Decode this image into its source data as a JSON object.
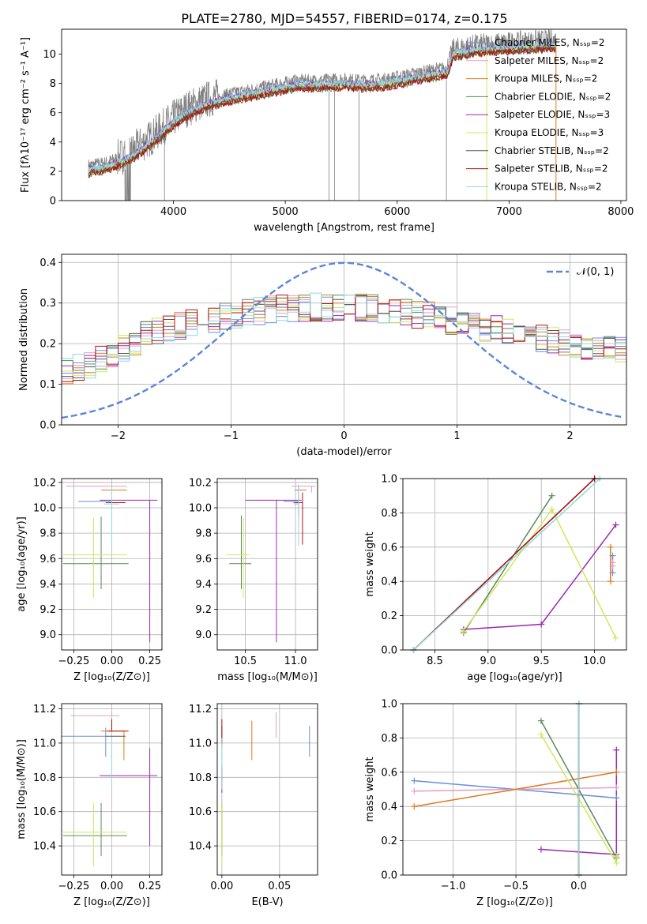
{
  "title": "PLATE=2780, MJD=54557, FIBERID=0174, z=0.175",
  "colors": {
    "chabrier_miles": "#6a8fd8",
    "salpeter_miles": "#e0a0c8",
    "kroupa_miles": "#e07a1f",
    "chabrier_elodie": "#5a8a5a",
    "salpeter_elodie": "#9a2ab0",
    "kroupa_elodie": "#cfe85a",
    "chabrier_stelib": "#555555",
    "salpeter_stelib": "#b01010",
    "kroupa_stelib": "#8ed8e0",
    "data": "#808080",
    "gauss": "#5a86d6",
    "grid": "#b0b0b0"
  },
  "chart_data": [
    {
      "id": "spectrum",
      "type": "line",
      "xlabel": "wavelength [Angstrom, rest frame]",
      "ylabel": "Flux [fλ10⁻¹⁷ erg cm⁻² s⁻¹ A⁻¹]",
      "xlim": [
        3000,
        8050
      ],
      "ylim": [
        0,
        11.7
      ],
      "xticks": [
        4000,
        5000,
        6000,
        7000,
        8000
      ],
      "yticks": [
        0,
        2,
        4,
        6,
        8,
        10
      ],
      "grid": false,
      "legend_position": "upper right",
      "series": [
        {
          "name": "Chabrier MILES, Nₛₛₚ=2",
          "key": "chabrier_miles"
        },
        {
          "name": "Salpeter MILES, Nₛₛₚ=2",
          "key": "salpeter_miles"
        },
        {
          "name": "Kroupa MILES, Nₛₛₚ=2",
          "key": "kroupa_miles"
        },
        {
          "name": "Chabrier ELODIE, Nₛₛₚ=2",
          "key": "chabrier_elodie"
        },
        {
          "name": "Salpeter ELODIE, Nₛₛₚ=3",
          "key": "salpeter_elodie"
        },
        {
          "name": "Kroupa ELODIE, Nₛₛₚ=3",
          "key": "kroupa_elodie"
        },
        {
          "name": "Chabrier STELIB, Nₛₛₚ=2",
          "key": "chabrier_stelib"
        },
        {
          "name": "Salpeter STELIB, Nₛₛₚ=2",
          "key": "salpeter_stelib"
        },
        {
          "name": "Kroupa STELIB, Nₛₛₚ=2",
          "key": "kroupa_stelib"
        }
      ],
      "continuum": {
        "x": [
          3240,
          3400,
          3600,
          3800,
          3950,
          4100,
          4300,
          4500,
          4700,
          4900,
          5100,
          5300,
          5500,
          5700,
          5900,
          6100,
          6300,
          6450,
          6500,
          6700,
          6900,
          7100,
          7300,
          7420
        ],
        "y": [
          2.4,
          2.6,
          3.2,
          4.3,
          5.3,
          6.2,
          6.9,
          7.3,
          7.6,
          7.9,
          8.2,
          8.2,
          8.3,
          8.2,
          8.3,
          8.6,
          8.9,
          9.1,
          10.3,
          10.6,
          10.7,
          10.8,
          10.9,
          10.9
        ]
      }
    },
    {
      "id": "residuals",
      "type": "histogram",
      "xlabel": "(data-model)/error",
      "ylabel": "Normed distribution",
      "xlim": [
        -2.5,
        2.5
      ],
      "ylim": [
        0,
        0.42
      ],
      "xticks": [
        -2,
        -1,
        0,
        1,
        2
      ],
      "yticks": [
        0.0,
        0.1,
        0.2,
        0.3,
        0.4
      ],
      "grid": true,
      "legend": "𝒩(0, 1)",
      "legend_position": "upper right",
      "bin_width": 0.1,
      "base_profile": [
        0.018,
        0.02,
        0.022,
        0.024,
        0.026,
        0.028,
        0.03,
        0.032,
        0.034,
        0.036,
        0.038,
        0.041,
        0.044,
        0.047,
        0.05,
        0.055,
        0.06,
        0.065,
        0.07,
        0.078,
        0.085,
        0.093,
        0.1,
        0.11,
        0.12,
        0.13,
        0.14,
        0.15,
        0.16,
        0.175,
        0.19,
        0.205,
        0.22,
        0.232,
        0.24,
        0.245,
        0.25,
        0.255,
        0.26,
        0.265,
        0.27,
        0.275,
        0.28,
        0.283,
        0.285,
        0.287,
        0.289,
        0.29,
        0.29,
        0.29,
        0.29,
        0.288,
        0.286,
        0.284,
        0.28,
        0.276,
        0.272,
        0.268,
        0.262,
        0.256,
        0.25,
        0.245,
        0.24,
        0.235,
        0.23,
        0.225,
        0.22,
        0.215,
        0.21,
        0.205,
        0.2,
        0.196,
        0.192,
        0.188,
        0.184,
        0.18,
        0.178,
        0.176,
        0.174,
        0.172,
        0.17,
        0.168,
        0.166,
        0.164,
        0.162,
        0.16,
        0.158,
        0.156,
        0.154,
        0.152,
        0.15,
        0.149,
        0.148,
        0.147,
        0.146,
        0.145,
        0.144,
        0.143,
        0.142,
        0.141
      ],
      "gauss_note": "N(0,1) pdf"
    },
    {
      "id": "z_vs_age",
      "type": "errorbar",
      "xlabel": "Z [log₁₀(Z/Z⊙)]",
      "ylabel": "age  [log₁₀(age/yr)]",
      "xlim": [
        -0.33,
        0.33
      ],
      "ylim": [
        8.88,
        10.23
      ],
      "xticks": [
        -0.25,
        0.0,
        0.25
      ],
      "xticklabels": [
        "−0.25",
        "0.00",
        "0.25"
      ],
      "yticks": [
        9.0,
        9.2,
        9.4,
        9.6,
        9.8,
        10.0,
        10.2
      ],
      "grid": true,
      "points": [
        {
          "key": "chabrier_miles",
          "x": 0.0,
          "y": 10.05,
          "xerr": [
            0.22,
            0.0
          ],
          "yerr": [
            0.15,
            0.12
          ]
        },
        {
          "key": "salpeter_miles",
          "x": 0.0,
          "y": 10.17,
          "xerr": [
            0.3,
            0.1
          ],
          "yerr": [
            0.02,
            0.02
          ]
        },
        {
          "key": "kroupa_miles",
          "x": 0.0,
          "y": 10.14,
          "xerr": [
            0.07,
            0.1
          ],
          "yerr": [
            0.02,
            0.02
          ]
        },
        {
          "key": "chabrier_elodie",
          "x": -0.07,
          "y": 9.56,
          "xerr": [
            0.25,
            0.18
          ],
          "yerr": [
            0.2,
            0.37
          ]
        },
        {
          "key": "salpeter_elodie",
          "x": 0.25,
          "y": 10.06,
          "xerr": [
            0.33,
            0.05
          ],
          "yerr": [
            1.12,
            0.0
          ]
        },
        {
          "key": "kroupa_elodie",
          "x": -0.12,
          "y": 9.63,
          "xerr": [
            0.2,
            0.22
          ],
          "yerr": [
            0.34,
            0.29
          ]
        },
        {
          "key": "chabrier_stelib",
          "x": -0.04,
          "y": 10.04,
          "xerr": [
            0.0,
            0.1
          ],
          "yerr": [
            0.0,
            0.0
          ]
        },
        {
          "key": "salpeter_stelib",
          "x": 0.0,
          "y": 10.04,
          "xerr": [
            0.02,
            0.09
          ],
          "yerr": [
            0.0,
            0.0
          ]
        },
        {
          "key": "kroupa_stelib",
          "x": 0.0,
          "y": 10.03,
          "xerr": [
            0.05,
            0.05
          ],
          "yerr": [
            0.33,
            0.14
          ]
        }
      ]
    },
    {
      "id": "mass_vs_age",
      "type": "errorbar",
      "xlabel": "mass [log₁₀(M/M⊙)]",
      "ylabel": "",
      "xlim": [
        10.22,
        11.22
      ],
      "ylim": [
        8.88,
        10.23
      ],
      "xticks": [
        10.5,
        11.0
      ],
      "yticks": [
        9.0,
        9.2,
        9.4,
        9.6,
        9.8,
        10.0,
        10.2
      ],
      "grid": true,
      "points": [
        {
          "key": "chabrier_miles",
          "x": 11.03,
          "y": 10.05,
          "xerr": [
            0.15,
            0.0
          ],
          "yerr": [
            0.12,
            0.13
          ]
        },
        {
          "key": "salpeter_miles",
          "x": 11.16,
          "y": 10.17,
          "xerr": [
            0.2,
            0.04
          ],
          "yerr": [
            0.05,
            0.0
          ]
        },
        {
          "key": "kroupa_miles",
          "x": 11.07,
          "y": 10.14,
          "xerr": [
            0.08,
            0.04
          ],
          "yerr": [
            0.0,
            0.0
          ]
        },
        {
          "key": "chabrier_elodie",
          "x": 10.46,
          "y": 9.56,
          "xerr": [
            0.12,
            0.1
          ],
          "yerr": [
            0.2,
            0.38
          ]
        },
        {
          "key": "salpeter_elodie",
          "x": 10.81,
          "y": 10.06,
          "xerr": [
            0.31,
            0.25
          ],
          "yerr": [
            1.12,
            0.0
          ]
        },
        {
          "key": "kroupa_elodie",
          "x": 10.48,
          "y": 9.63,
          "xerr": [
            0.17,
            0.06
          ],
          "yerr": [
            0.34,
            0.29
          ]
        },
        {
          "key": "chabrier_stelib",
          "x": 11.04,
          "y": 10.04,
          "xerr": [
            0.06,
            0.0
          ],
          "yerr": [
            0.0,
            0.0
          ]
        },
        {
          "key": "salpeter_stelib",
          "x": 11.07,
          "y": 10.04,
          "xerr": [
            0.06,
            0.0
          ],
          "yerr": [
            0.33,
            0.08
          ]
        },
        {
          "key": "kroupa_stelib",
          "x": 11.03,
          "y": 10.03,
          "xerr": [
            0.05,
            0.0
          ],
          "yerr": [
            0.33,
            0.14
          ]
        }
      ]
    },
    {
      "id": "age_weights",
      "type": "line",
      "xlabel": "age  [log₁₀(age/yr)]",
      "ylabel": "mass weight",
      "xlim": [
        8.2,
        10.3
      ],
      "ylim": [
        0,
        1
      ],
      "xticks": [
        8.5,
        9.0,
        9.5,
        10.0
      ],
      "yticks": [
        0.0,
        0.2,
        0.4,
        0.6,
        0.8,
        1.0
      ],
      "grid": true,
      "series": [
        {
          "key": "chabrier_miles",
          "x": [
            10.17,
            10.17
          ],
          "y": [
            0.55,
            0.45
          ]
        },
        {
          "key": "salpeter_miles",
          "x": [
            10.17,
            10.17
          ],
          "y": [
            0.49,
            0.51
          ]
        },
        {
          "key": "kroupa_miles",
          "x": [
            10.15,
            10.15
          ],
          "y": [
            0.4,
            0.6
          ]
        },
        {
          "key": "chabrier_elodie",
          "x": [
            8.77,
            9.6
          ],
          "y": [
            0.1,
            0.9
          ]
        },
        {
          "key": "salpeter_elodie",
          "x": [
            8.77,
            9.5,
            10.2
          ],
          "y": [
            0.12,
            0.15,
            0.73
          ]
        },
        {
          "key": "kroupa_elodie",
          "x": [
            8.77,
            9.6,
            10.2
          ],
          "y": [
            0.11,
            0.82,
            0.07
          ]
        },
        {
          "key": "chabrier_stelib",
          "x": [
            8.3,
            10.0
          ],
          "y": [
            0.0,
            1.0
          ]
        },
        {
          "key": "salpeter_stelib",
          "x": [
            8.3,
            10.0
          ],
          "y": [
            0.0,
            1.0
          ]
        },
        {
          "key": "kroupa_stelib",
          "x": [
            8.3,
            10.05
          ],
          "y": [
            0.0,
            1.0
          ]
        }
      ]
    },
    {
      "id": "z_vs_mass",
      "type": "errorbar",
      "xlabel": "Z [log₁₀(Z/Z⊙)]",
      "ylabel": "mass [log₁₀(M/M⊙)]",
      "xlim": [
        -0.33,
        0.33
      ],
      "ylim": [
        10.23,
        11.23
      ],
      "xticks": [
        -0.25,
        0.0,
        0.25
      ],
      "xticklabels": [
        "−0.25",
        "0.00",
        "0.25"
      ],
      "yticks": [
        10.4,
        10.6,
        10.8,
        11.0,
        11.2
      ],
      "grid": true,
      "points": [
        {
          "key": "chabrier_miles",
          "x": -0.04,
          "y": 11.04,
          "xerr": [
            0.3,
            0.0
          ],
          "yerr": [
            0.12,
            0.05
          ]
        },
        {
          "key": "salpeter_miles",
          "x": 0.0,
          "y": 11.16,
          "xerr": [
            0.27,
            0.05
          ],
          "yerr": [
            0.0,
            0.02
          ]
        },
        {
          "key": "kroupa_miles",
          "x": 0.08,
          "y": 11.07,
          "xerr": [
            0.15,
            0.0
          ],
          "yerr": [
            0.17,
            0.0
          ]
        },
        {
          "key": "chabrier_elodie",
          "x": -0.07,
          "y": 10.46,
          "xerr": [
            0.25,
            0.17
          ],
          "yerr": [
            0.12,
            0.19
          ]
        },
        {
          "key": "salpeter_elodie",
          "x": 0.25,
          "y": 10.81,
          "xerr": [
            0.33,
            0.05
          ],
          "yerr": [
            0.41,
            0.16
          ]
        },
        {
          "key": "kroupa_elodie",
          "x": -0.12,
          "y": 10.48,
          "xerr": [
            0.2,
            0.22
          ],
          "yerr": [
            0.2,
            0.17
          ]
        },
        {
          "key": "chabrier_stelib",
          "x": -0.04,
          "y": 11.04,
          "xerr": [
            0.0,
            0.13
          ],
          "yerr": [
            0.0,
            0.0
          ]
        },
        {
          "key": "salpeter_stelib",
          "x": 0.0,
          "y": 11.07,
          "xerr": [
            0.03,
            0.11
          ],
          "yerr": [
            0.0,
            0.07
          ]
        },
        {
          "key": "kroupa_stelib",
          "x": 0.0,
          "y": 11.03,
          "xerr": [
            0.0,
            0.0
          ],
          "yerr": [
            0.3,
            0.0
          ]
        }
      ]
    },
    {
      "id": "ebv_vs_mass",
      "type": "errorbar",
      "xlabel": "E(B-V)",
      "ylabel": "",
      "xlim": [
        -0.004,
        0.083
      ],
      "ylim": [
        10.23,
        11.23
      ],
      "xticks": [
        0.0,
        0.05
      ],
      "xticklabels": [
        "0.00",
        "0.05"
      ],
      "yticks": [
        10.4,
        10.6,
        10.8,
        11.0,
        11.2
      ],
      "grid": true,
      "points": [
        {
          "key": "chabrier_miles",
          "x": 0.076,
          "y": 11.04,
          "xerr": [
            0,
            0
          ],
          "yerr": [
            0.12,
            0.06
          ]
        },
        {
          "key": "salpeter_miles",
          "x": 0.047,
          "y": 11.16,
          "xerr": [
            0,
            0
          ],
          "yerr": [
            0.13,
            0.02
          ]
        },
        {
          "key": "kroupa_miles",
          "x": 0.026,
          "y": 11.07,
          "xerr": [
            0,
            0
          ],
          "yerr": [
            0.17,
            0.06
          ]
        },
        {
          "key": "chabrier_elodie",
          "x": 0.0,
          "y": 10.46,
          "xerr": [
            0,
            0
          ],
          "yerr": [
            0.12,
            0.19
          ]
        },
        {
          "key": "salpeter_elodie",
          "x": 0.0,
          "y": 10.81,
          "xerr": [
            0,
            0
          ],
          "yerr": [
            0.1,
            0.05
          ]
        },
        {
          "key": "kroupa_elodie",
          "x": 0.0,
          "y": 10.48,
          "xerr": [
            0,
            0
          ],
          "yerr": [
            0.2,
            0.17
          ]
        },
        {
          "key": "chabrier_stelib",
          "x": 0.0,
          "y": 11.04,
          "xerr": [
            0,
            0
          ],
          "yerr": [
            0.04,
            0.06
          ]
        },
        {
          "key": "salpeter_stelib",
          "x": 0.0,
          "y": 11.07,
          "xerr": [
            0,
            0
          ],
          "yerr": [
            0.08,
            0.07
          ]
        },
        {
          "key": "kroupa_stelib",
          "x": 0.0,
          "y": 11.03,
          "xerr": [
            0,
            0
          ],
          "yerr": [
            0.3,
            0.0
          ]
        }
      ]
    },
    {
      "id": "z_weights",
      "type": "line",
      "xlabel": "Z [log₁₀(Z/Z⊙)]",
      "ylabel": "mass weight",
      "xlim": [
        -1.4,
        0.38
      ],
      "ylim": [
        0,
        1
      ],
      "xticks": [
        -1.0,
        -0.5,
        0.0
      ],
      "xticklabels": [
        "−1.0",
        "−0.5",
        "0.0"
      ],
      "yticks": [
        0.0,
        0.2,
        0.4,
        0.6,
        0.8,
        1.0
      ],
      "grid": true,
      "series": [
        {
          "key": "chabrier_miles",
          "x": [
            -1.31,
            0.3
          ],
          "y": [
            0.55,
            0.45
          ]
        },
        {
          "key": "salpeter_miles",
          "x": [
            -1.31,
            0.3
          ],
          "y": [
            0.49,
            0.51
          ]
        },
        {
          "key": "kroupa_miles",
          "x": [
            -1.31,
            0.3
          ],
          "y": [
            0.4,
            0.6
          ]
        },
        {
          "key": "chabrier_elodie",
          "x": [
            -0.3,
            0.3
          ],
          "y": [
            0.9,
            0.1
          ]
        },
        {
          "key": "salpeter_elodie",
          "x": [
            -0.3,
            0.3,
            0.3
          ],
          "y": [
            0.15,
            0.12,
            0.73
          ]
        },
        {
          "key": "kroupa_elodie",
          "x": [
            -0.3,
            0.3,
            0.3
          ],
          "y": [
            0.82,
            0.07,
            0.11
          ]
        },
        {
          "key": "chabrier_stelib",
          "x": [
            0.0,
            0.0
          ],
          "y": [
            0.0,
            1.0
          ]
        },
        {
          "key": "salpeter_stelib",
          "x": [
            0.0,
            0.0
          ],
          "y": [
            0.0,
            1.0
          ]
        },
        {
          "key": "kroupa_stelib",
          "x": [
            0.0,
            0.0
          ],
          "y": [
            0.0,
            1.0
          ]
        }
      ]
    }
  ]
}
